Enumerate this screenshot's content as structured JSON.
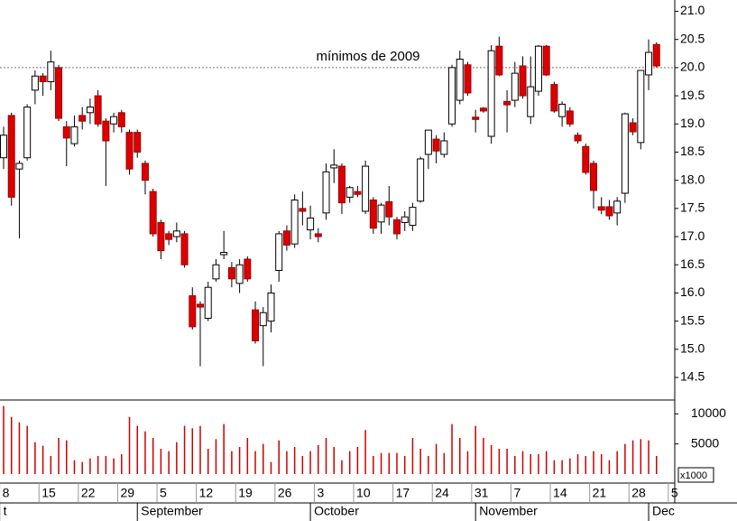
{
  "chart_data": [
    {
      "type": "candlestick",
      "categories": [
        null,
        null,
        null,
        null,
        null,
        null,
        null,
        null,
        null,
        null,
        null,
        null,
        null,
        null,
        null,
        null,
        null,
        null,
        null,
        null,
        null,
        null,
        null,
        null,
        null,
        null,
        null,
        null,
        null,
        null,
        null,
        null,
        null,
        null,
        null,
        null,
        null,
        null,
        null,
        null,
        null,
        null,
        null,
        null,
        null,
        null,
        null,
        null,
        null,
        null,
        null,
        null,
        null,
        null,
        null,
        null,
        null,
        null,
        null,
        null,
        null,
        null,
        null,
        null,
        null,
        null,
        null,
        null,
        null,
        null,
        null,
        null,
        null,
        null,
        null,
        null,
        null,
        null,
        null,
        null,
        null,
        null,
        null,
        null
      ],
      "open": [
        18.4,
        19.15,
        18.2,
        18.4,
        19.6,
        19.85,
        19.75,
        20.0,
        18.95,
        18.65,
        19.15,
        19.2,
        19.5,
        19.05,
        19.0,
        19.2,
        18.85,
        18.85,
        18.3,
        17.8,
        17.25,
        17.05,
        17.0,
        17.05,
        15.95,
        15.8,
        15.55,
        16.25,
        16.68,
        16.45,
        16.17,
        16.6,
        15.7,
        15.42,
        15.5,
        16.4,
        17.1,
        16.87,
        17.5,
        17.12,
        17.05,
        17.42,
        18.22,
        18.25,
        17.7,
        17.8,
        17.45,
        17.65,
        17.26,
        17.62,
        17.3,
        17.25,
        17.2,
        17.63,
        18.46,
        18.73,
        18.46,
        19.0,
        19.42,
        20.05,
        19.12,
        19.28,
        18.78,
        20.38,
        19.4,
        19.42,
        20.03,
        19.13,
        19.58,
        20.38,
        19.7,
        19.13,
        19.23,
        18.8,
        18.6,
        18.3,
        17.53,
        17.53,
        17.42,
        17.77,
        19.02,
        18.67,
        19.87,
        20.41
      ],
      "high": [
        18.95,
        19.2,
        18.35,
        19.35,
        19.95,
        19.9,
        20.3,
        20.05,
        19.05,
        19.15,
        19.3,
        19.45,
        19.6,
        19.1,
        19.2,
        19.25,
        18.9,
        18.9,
        18.35,
        17.85,
        17.3,
        17.1,
        17.25,
        17.1,
        16.1,
        15.85,
        16.2,
        16.6,
        17.1,
        16.55,
        16.6,
        16.65,
        15.85,
        15.75,
        16.15,
        17.1,
        17.2,
        17.75,
        17.8,
        17.55,
        17.15,
        18.3,
        18.55,
        18.3,
        17.9,
        17.9,
        18.35,
        17.7,
        17.6,
        17.9,
        17.35,
        17.45,
        17.6,
        18.42,
        18.9,
        18.8,
        18.85,
        20.05,
        20.3,
        20.1,
        19.25,
        19.3,
        20.4,
        20.55,
        19.6,
        20.1,
        20.2,
        20.2,
        20.4,
        20.4,
        19.75,
        19.4,
        19.3,
        18.85,
        18.65,
        18.35,
        17.7,
        17.65,
        17.7,
        19.2,
        19.1,
        19.95,
        20.5,
        20.45
      ],
      "low": [
        18.2,
        17.55,
        16.97,
        18.35,
        19.35,
        19.5,
        19.6,
        19.05,
        18.25,
        18.6,
        18.9,
        19.0,
        18.95,
        17.9,
        18.85,
        18.85,
        18.1,
        18.4,
        17.75,
        17.0,
        16.6,
        16.85,
        16.9,
        16.45,
        15.35,
        14.7,
        15.5,
        16.2,
        16.6,
        16.1,
        16.0,
        16.2,
        15.1,
        14.7,
        15.3,
        16.2,
        16.75,
        16.8,
        17.2,
        16.95,
        16.9,
        17.3,
        17.95,
        17.4,
        17.6,
        17.7,
        17.4,
        17.05,
        17.05,
        17.2,
        16.95,
        17.1,
        17.1,
        17.6,
        18.2,
        18.3,
        18.4,
        18.95,
        19.35,
        19.5,
        18.85,
        19.2,
        18.65,
        19.85,
        18.85,
        19.3,
        19.45,
        19.0,
        19.5,
        19.85,
        19.2,
        18.95,
        18.95,
        18.65,
        18.1,
        17.5,
        17.4,
        17.3,
        17.2,
        17.6,
        18.8,
        18.55,
        19.6,
        20.0
      ],
      "close": [
        18.8,
        17.7,
        18.3,
        19.3,
        19.85,
        19.75,
        20.1,
        19.1,
        18.75,
        18.95,
        19.05,
        19.3,
        19.0,
        18.7,
        19.13,
        18.95,
        18.2,
        18.5,
        18.0,
        17.05,
        16.75,
        16.95,
        17.1,
        16.5,
        15.4,
        15.75,
        16.1,
        16.5,
        16.72,
        16.25,
        16.5,
        16.25,
        15.15,
        15.65,
        16.0,
        17.05,
        16.85,
        17.65,
        17.45,
        17.33,
        17.0,
        18.15,
        18.27,
        17.6,
        17.87,
        17.75,
        18.25,
        17.15,
        17.56,
        17.35,
        17.05,
        17.35,
        17.52,
        18.38,
        18.89,
        18.52,
        18.7,
        20.0,
        20.15,
        19.55,
        19.08,
        19.23,
        20.3,
        19.87,
        19.34,
        19.9,
        19.5,
        19.66,
        20.38,
        19.87,
        19.23,
        19.35,
        19.0,
        18.7,
        18.14,
        17.82,
        17.47,
        17.37,
        17.63,
        19.18,
        18.86,
        19.95,
        20.27,
        20.03
      ],
      "up_color": "#ffffff",
      "down_color": "#dd0000",
      "ylim": [
        14.1,
        21.2
      ],
      "yticks": [
        14.5,
        {
          "value": 15,
          "label": "15.0"
        },
        15.5,
        {
          "value": 16,
          "label": "16.0"
        },
        16.5,
        {
          "value": 17,
          "label": "17.0"
        },
        17.5,
        {
          "value": 18,
          "label": "18.0"
        },
        18.5,
        {
          "value": 19,
          "label": "19.0"
        },
        19.5,
        {
          "value": 20,
          "label": "20.0"
        },
        20.5,
        {
          "value": 21,
          "label": "21.0"
        }
      ],
      "reference_line": {
        "value": 20,
        "label": "mínimos de 2009"
      }
    },
    {
      "type": "bar",
      "values": [
        11300,
        9500,
        8600,
        8000,
        5300,
        4700,
        3000,
        6000,
        5600,
        2300,
        2000,
        2600,
        3000,
        3000,
        2600,
        3300,
        9500,
        8000,
        7100,
        6000,
        4200,
        3800,
        5300,
        8000,
        7600,
        8000,
        4200,
        5800,
        8300,
        3800,
        4500,
        6000,
        3800,
        5000,
        2000,
        5600,
        3800,
        4500,
        3000,
        3800,
        4800,
        6000,
        4500,
        2300,
        3800,
        4500,
        7300,
        3000,
        3500,
        3500,
        3500,
        3000,
        6000,
        4200,
        3000,
        5000,
        3500,
        8300,
        6000,
        3800,
        8000,
        6000,
        4800,
        4200,
        4200,
        3000,
        3800,
        3300,
        3300,
        3800,
        2300,
        2300,
        2600,
        3300,
        3000,
        3800,
        3300,
        2300,
        3800,
        5000,
        5600,
        5800,
        5600,
        3000
      ],
      "color": "#cc0000",
      "ylim": [
        0,
        12000
      ],
      "yticks": [
        5000,
        10000
      ],
      "unit_label": "x1000",
      "xticks": [
        {
          "value": -0.5,
          "label": "8"
        },
        {
          "value": 4.5,
          "label": "15"
        },
        {
          "value": 9.5,
          "label": "22"
        },
        {
          "value": 14.5,
          "label": "29"
        },
        {
          "value": 19.5,
          "label": "5"
        },
        {
          "value": 24.5,
          "label": "12"
        },
        {
          "value": 29.5,
          "label": "19"
        },
        {
          "value": 34.5,
          "label": "26"
        },
        {
          "value": 39.5,
          "label": "3"
        },
        {
          "value": 44.5,
          "label": "10"
        },
        {
          "value": 49.5,
          "label": "17"
        },
        {
          "value": 54.5,
          "label": "24"
        },
        {
          "value": 59.5,
          "label": "31"
        },
        {
          "value": 64.5,
          "label": "7"
        },
        {
          "value": 69.5,
          "label": "14"
        },
        {
          "value": 74.5,
          "label": "21"
        },
        {
          "value": 79.5,
          "label": "28"
        },
        {
          "value": 84.5,
          "label": "5"
        }
      ],
      "months": [
        {
          "value": -0.5,
          "label": "t"
        },
        {
          "value": 17,
          "label": "September"
        },
        {
          "value": 39,
          "label": "October"
        },
        {
          "value": 60,
          "label": "November"
        },
        {
          "value": 82,
          "label": "Dec"
        }
      ]
    }
  ]
}
